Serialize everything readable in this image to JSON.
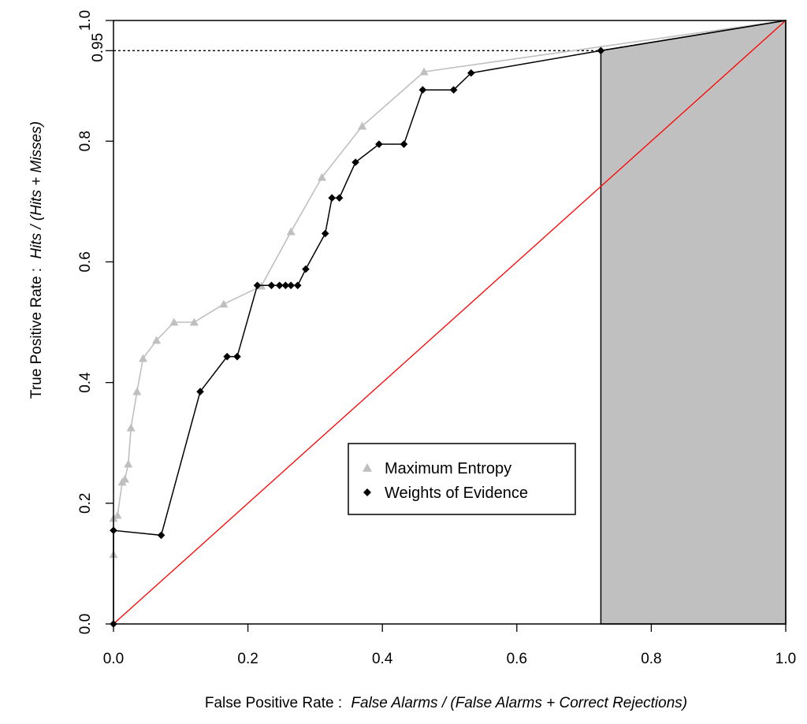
{
  "chart_data": {
    "type": "line",
    "xlim": [
      0.0,
      1.0
    ],
    "ylim": [
      0.0,
      1.0
    ],
    "x_ticks": [
      "0.0",
      "0.2",
      "0.4",
      "0.6",
      "0.8",
      "1.0"
    ],
    "y_ticks": [
      "0.0",
      "0.2",
      "0.4",
      "0.6",
      "0.8",
      "1.0"
    ],
    "xlabel_plain": "False Positive Rate :",
    "xlabel_italic": "False Alarms / (False Alarms + Correct Rejections)",
    "ylabel_plain": "True Positive Rate :",
    "ylabel_italic": "Hits / (Hits + Misses)",
    "reference_tpr": 0.95,
    "reference_tpr_label": "0.95",
    "reference_fpr": 0.725,
    "colors": {
      "maxent": "#bfbfbf",
      "woe": "#000000",
      "diagonal": "#ff0000",
      "shade": "#c0c0c0"
    },
    "legend": {
      "position": "lower-center",
      "entries": [
        "Maximum Entropy",
        "Weights of Evidence"
      ]
    },
    "series": [
      {
        "name": "Maximum Entropy",
        "marker": "triangle",
        "x": [
          0.0,
          0.0,
          0.006,
          0.013,
          0.017,
          0.022,
          0.026,
          0.035,
          0.044,
          0.064,
          0.09,
          0.12,
          0.164,
          0.22,
          0.264,
          0.31,
          0.37,
          0.462,
          1.0
        ],
        "y": [
          0.115,
          0.175,
          0.18,
          0.235,
          0.24,
          0.265,
          0.325,
          0.385,
          0.44,
          0.47,
          0.5,
          0.5,
          0.53,
          0.56,
          0.65,
          0.74,
          0.825,
          0.915,
          1.0
        ]
      },
      {
        "name": "Weights of Evidence",
        "marker": "diamond",
        "x": [
          0.0,
          0.0,
          0.071,
          0.129,
          0.169,
          0.184,
          0.214,
          0.235,
          0.247,
          0.256,
          0.264,
          0.274,
          0.286,
          0.315,
          0.325,
          0.336,
          0.36,
          0.395,
          0.432,
          0.46,
          0.506,
          0.532,
          0.725,
          1.0
        ],
        "y": [
          0.0,
          0.155,
          0.147,
          0.385,
          0.443,
          0.443,
          0.561,
          0.561,
          0.561,
          0.561,
          0.561,
          0.561,
          0.588,
          0.647,
          0.706,
          0.706,
          0.765,
          0.795,
          0.795,
          0.885,
          0.885,
          0.913,
          0.95,
          1.0
        ]
      }
    ]
  }
}
